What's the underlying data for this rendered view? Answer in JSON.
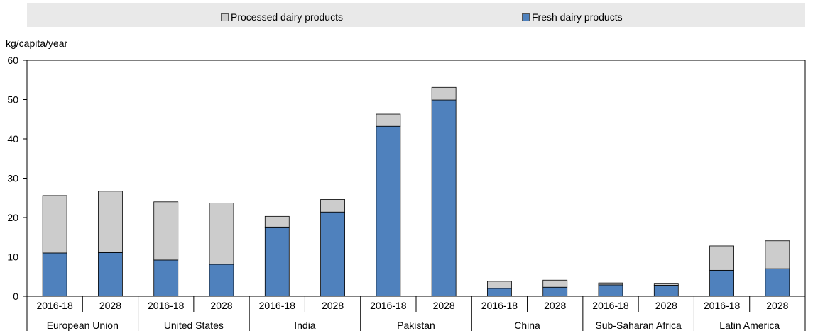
{
  "chart_data": {
    "type": "bar",
    "stacked": true,
    "ylabel": "kg/capita/year",
    "ylim": [
      0,
      60
    ],
    "yticks": [
      0,
      10,
      20,
      30,
      40,
      50,
      60
    ],
    "grid": false,
    "legend_position": "top",
    "groups": [
      {
        "name": "European Union",
        "categories": [
          "2016-18",
          "2028"
        ]
      },
      {
        "name": "United States",
        "categories": [
          "2016-18",
          "2028"
        ]
      },
      {
        "name": "India",
        "categories": [
          "2016-18",
          "2028"
        ]
      },
      {
        "name": "Pakistan",
        "categories": [
          "2016-18",
          "2028"
        ]
      },
      {
        "name": "China",
        "categories": [
          "2016-18",
          "2028"
        ]
      },
      {
        "name": "Sub-Saharan Africa",
        "categories": [
          "2016-18",
          "2028"
        ]
      },
      {
        "name": "Latin America",
        "categories": [
          "2016-18",
          "2028"
        ]
      }
    ],
    "series": [
      {
        "name": "Fresh dairy products",
        "color": "#4f81bd",
        "values": [
          11.0,
          11.1,
          9.2,
          8.1,
          17.6,
          21.4,
          43.2,
          49.9,
          2.0,
          2.3,
          2.9,
          2.8,
          6.6,
          7.0
        ]
      },
      {
        "name": "Processed dairy products",
        "color": "#cccccc",
        "values": [
          14.6,
          15.6,
          14.8,
          15.6,
          2.7,
          3.2,
          3.1,
          3.2,
          1.8,
          1.8,
          0.5,
          0.5,
          6.2,
          7.1
        ]
      }
    ],
    "legend": [
      {
        "name": "Processed dairy products",
        "color": "#cccccc"
      },
      {
        "name": "Fresh dairy products",
        "color": "#4f81bd"
      }
    ]
  }
}
